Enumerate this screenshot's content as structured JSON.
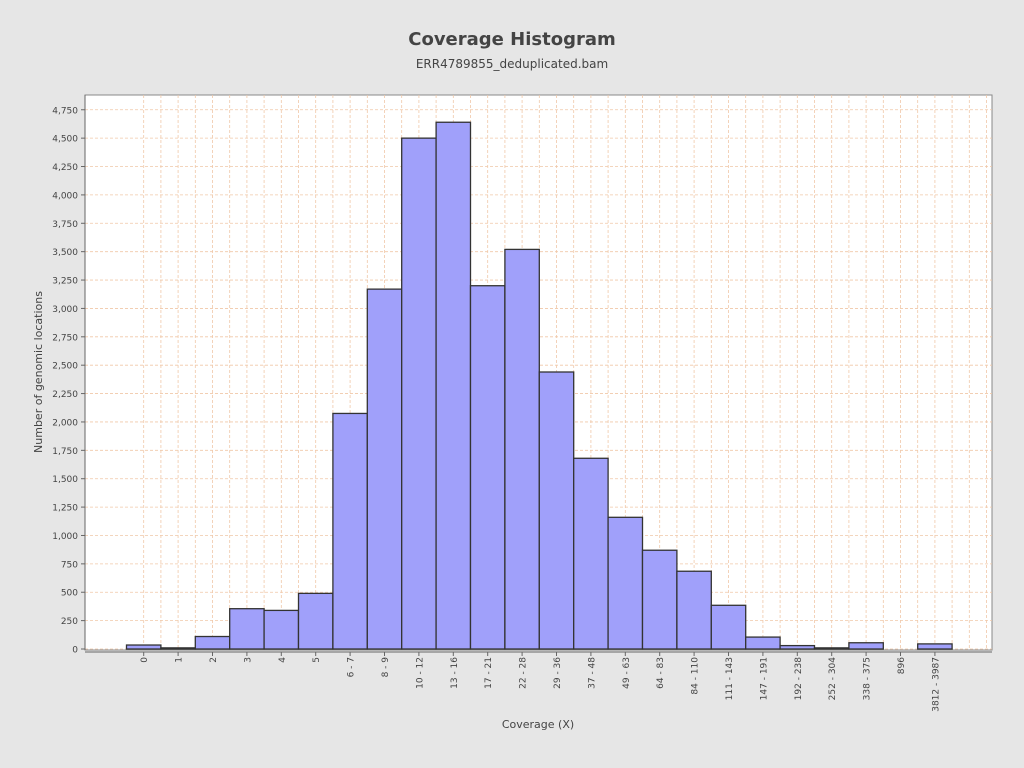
{
  "chart_data": {
    "type": "bar",
    "title": "Coverage Histogram",
    "subtitle": "ERR4789855_deduplicated.bam",
    "xlabel": "Coverage (X)",
    "ylabel": "Number of genomic locations",
    "ylim": [
      0,
      4880
    ],
    "yticks": [
      0,
      250,
      500,
      750,
      1000,
      1250,
      1500,
      1750,
      2000,
      2250,
      2500,
      2750,
      3000,
      3250,
      3500,
      3750,
      4000,
      4250,
      4500,
      4750
    ],
    "ytick_labels": [
      "0",
      "250",
      "500",
      "750",
      "1,000",
      "1,250",
      "1,500",
      "1,750",
      "2,000",
      "2,250",
      "2,500",
      "2,750",
      "3,000",
      "3,250",
      "3,500",
      "3,750",
      "4,000",
      "4,250",
      "4,500",
      "4,750"
    ],
    "grid": true,
    "categories": [
      "0",
      "1",
      "2",
      "3",
      "4",
      "5",
      "6 - 7",
      "8 - 9",
      "10 - 12",
      "13 - 16",
      "17 - 21",
      "22 - 28",
      "29 - 36",
      "37 - 48",
      "49 - 63",
      "64 - 83",
      "84 - 110",
      "111 - 143",
      "147 - 191",
      "192 - 238",
      "252 - 304",
      "338 - 375",
      "896",
      "3812 - 3987"
    ],
    "values": [
      35,
      10,
      110,
      355,
      340,
      490,
      2075,
      3170,
      4500,
      4640,
      3200,
      3520,
      2440,
      1680,
      1160,
      870,
      685,
      385,
      105,
      30,
      10,
      55,
      0,
      45
    ],
    "bar_color": "#a0a0fa",
    "bar_edge_color": "#333333",
    "grid_color": "#f0c8a8",
    "plot_background": "#ffffff",
    "page_background": "#e6e6e6"
  }
}
